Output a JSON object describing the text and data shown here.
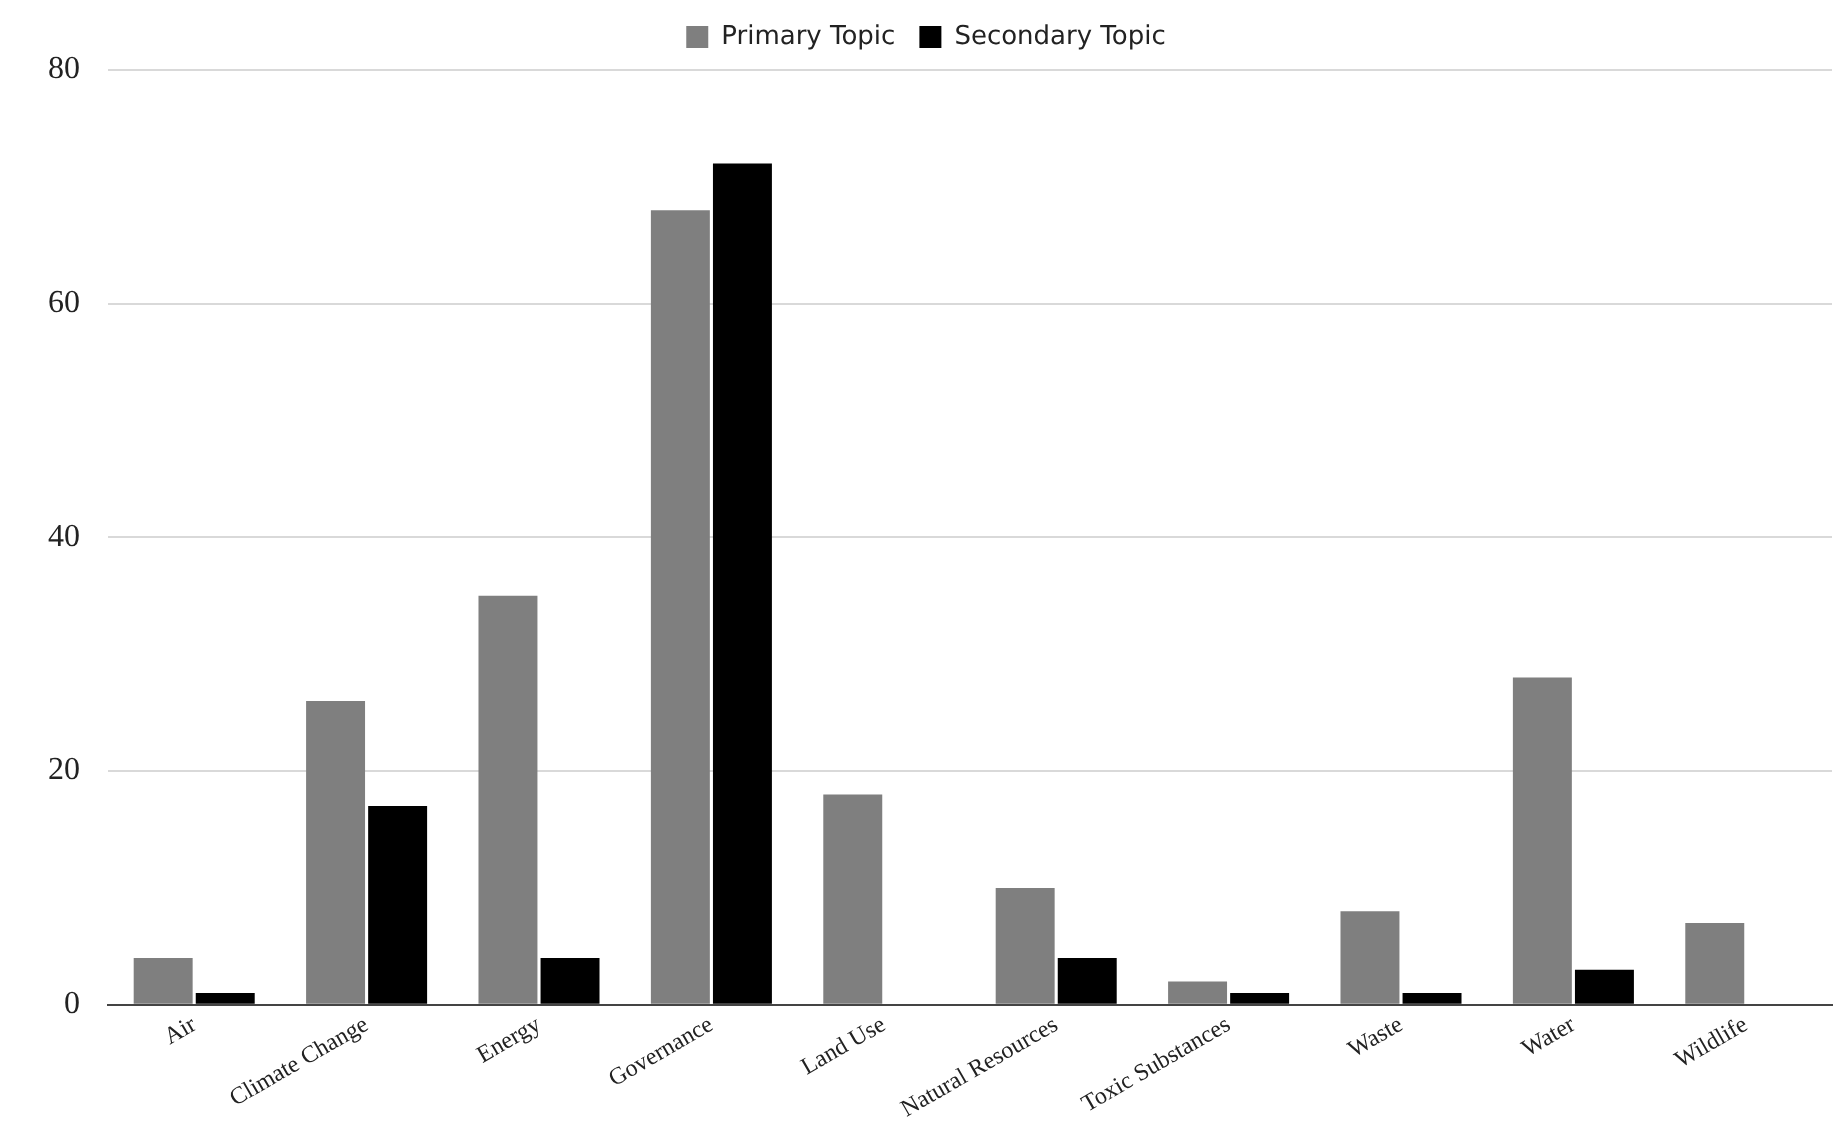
{
  "chart_data": {
    "type": "bar",
    "categories": [
      "Air",
      "Climate Change",
      "Energy",
      "Governance",
      "Land Use",
      "Natural Resources",
      "Toxic Substances",
      "Waste",
      "Water",
      "Wildlife"
    ],
    "series": [
      {
        "name": "Primary Topic",
        "color": "#7f7f7f",
        "values": [
          4,
          26,
          35,
          68,
          18,
          10,
          2,
          8,
          28,
          7
        ]
      },
      {
        "name": "Secondary Topic",
        "color": "#000000",
        "values": [
          1,
          17,
          4,
          72,
          0,
          4,
          1,
          1,
          3,
          0
        ]
      }
    ],
    "ylim": [
      0,
      80
    ],
    "yticks": [
      0,
      20,
      40,
      60,
      80
    ],
    "grid": "y",
    "legend": "top"
  }
}
